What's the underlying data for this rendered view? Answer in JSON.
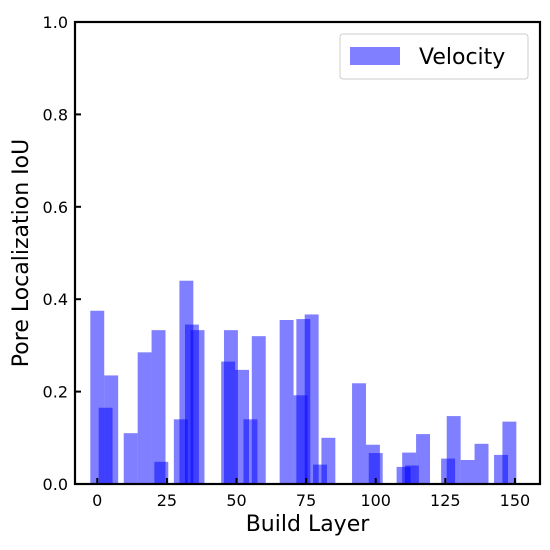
{
  "chart_data": {
    "type": "bar",
    "xlabel": "Build Layer",
    "ylabel": "Pore Localization IoU",
    "xlim": [
      -8,
      159
    ],
    "ylim": [
      0,
      1.0
    ],
    "xticks": [
      0,
      25,
      50,
      75,
      100,
      125,
      150
    ],
    "xtick_labels": [
      "0",
      "25",
      "50",
      "75",
      "100",
      "125",
      "150"
    ],
    "yticks": [
      0.0,
      0.2,
      0.4,
      0.6,
      0.8,
      1.0
    ],
    "ytick_labels": [
      "0.0",
      "0.2",
      "0.4",
      "0.6",
      "0.8",
      "1.0"
    ],
    "legend_position": "top-right",
    "bar_width": 5,
    "color": "#0000ff",
    "alpha": 0.5,
    "series": [
      {
        "name": "Velocity",
        "points": [
          {
            "x": 0,
            "y": 0.375
          },
          {
            "x": 3,
            "y": 0.165
          },
          {
            "x": 5,
            "y": 0.235
          },
          {
            "x": 12,
            "y": 0.11
          },
          {
            "x": 17,
            "y": 0.285
          },
          {
            "x": 22,
            "y": 0.333
          },
          {
            "x": 23,
            "y": 0.048
          },
          {
            "x": 30,
            "y": 0.14
          },
          {
            "x": 32,
            "y": 0.44
          },
          {
            "x": 34,
            "y": 0.345
          },
          {
            "x": 36,
            "y": 0.333
          },
          {
            "x": 47,
            "y": 0.265
          },
          {
            "x": 48,
            "y": 0.333
          },
          {
            "x": 52,
            "y": 0.247
          },
          {
            "x": 55,
            "y": 0.14
          },
          {
            "x": 58,
            "y": 0.32
          },
          {
            "x": 68,
            "y": 0.355
          },
          {
            "x": 73,
            "y": 0.192
          },
          {
            "x": 74,
            "y": 0.357
          },
          {
            "x": 77,
            "y": 0.367
          },
          {
            "x": 80,
            "y": 0.042
          },
          {
            "x": 83,
            "y": 0.1
          },
          {
            "x": 94,
            "y": 0.218
          },
          {
            "x": 99,
            "y": 0.085
          },
          {
            "x": 100,
            "y": 0.067
          },
          {
            "x": 110,
            "y": 0.037
          },
          {
            "x": 112,
            "y": 0.068
          },
          {
            "x": 113,
            "y": 0.04
          },
          {
            "x": 117,
            "y": 0.108
          },
          {
            "x": 126,
            "y": 0.055
          },
          {
            "x": 128,
            "y": 0.147
          },
          {
            "x": 133,
            "y": 0.052
          },
          {
            "x": 138,
            "y": 0.087
          },
          {
            "x": 145,
            "y": 0.063
          },
          {
            "x": 148,
            "y": 0.135
          }
        ]
      }
    ]
  }
}
